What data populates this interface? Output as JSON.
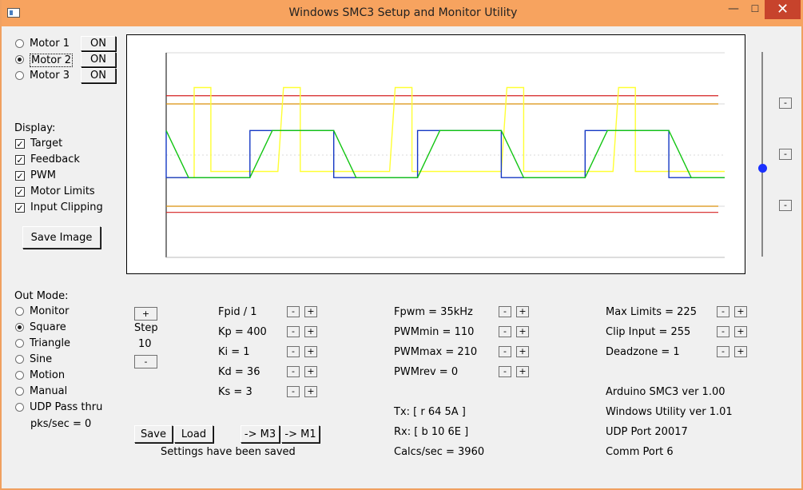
{
  "window": {
    "title": "Windows SMC3 Setup and Monitor Utility",
    "close_glyph": "✕",
    "min_glyph": "—",
    "max_glyph": "☐"
  },
  "motors": [
    {
      "label": "Motor 1",
      "state": "ON",
      "selected": false
    },
    {
      "label": "Motor 2",
      "state": "ON",
      "selected": true
    },
    {
      "label": "Motor 3",
      "state": "ON",
      "selected": false
    }
  ],
  "display": {
    "heading": "Display:",
    "options": [
      {
        "label": "Target",
        "checked": true
      },
      {
        "label": "Feedback",
        "checked": true
      },
      {
        "label": "PWM",
        "checked": true
      },
      {
        "label": "Motor Limits",
        "checked": true
      },
      {
        "label": "Input Clipping",
        "checked": true
      }
    ],
    "save_image": "Save Image"
  },
  "out_mode": {
    "heading": "Out Mode:",
    "options": [
      {
        "label": "Monitor",
        "selected": false
      },
      {
        "label": "Square",
        "selected": true
      },
      {
        "label": "Triangle",
        "selected": false
      },
      {
        "label": "Sine",
        "selected": false
      },
      {
        "label": "Motion",
        "selected": false
      },
      {
        "label": "Manual",
        "selected": false
      },
      {
        "label": "UDP Pass thru",
        "selected": false
      }
    ],
    "pks": "pks/sec = 0"
  },
  "step": {
    "plus": "+",
    "minus": "-",
    "label": "Step",
    "value": "10"
  },
  "pid": [
    {
      "label": "Fpid / 1"
    },
    {
      "label": "Kp = 400"
    },
    {
      "label": "Ki = 1"
    },
    {
      "label": "Kd = 36"
    },
    {
      "label": "Ks = 3"
    }
  ],
  "pwm": [
    {
      "label": "Fpwm = 35kHz"
    },
    {
      "label": "PWMmin = 110"
    },
    {
      "label": "PWMmax = 210"
    },
    {
      "label": "PWMrev = 0"
    }
  ],
  "limits": [
    {
      "label": "Max Limits = 225"
    },
    {
      "label": "Clip Input = 255"
    },
    {
      "label": "Deadzone = 1"
    }
  ],
  "comm": {
    "tx": "Tx: [ r 64 5A ]",
    "rx": "Rx: [ b 10 6E ]",
    "calcs": "Calcs/sec = 3960"
  },
  "info": [
    "Arduino SMC3 ver 1.00",
    "Windows Utility ver 1.01",
    "UDP Port 20017",
    "Comm Port 6"
  ],
  "buttons": {
    "save": "Save",
    "load": "Load",
    "to_m3": "-> M3",
    "to_m1": "-> M1",
    "minus": "-",
    "plus": "+"
  },
  "status": "Settings have been saved",
  "slider": {
    "level_fraction": 0.61,
    "side_minus": "-"
  },
  "chart_data": {
    "type": "line",
    "xlim": [
      0,
      100
    ],
    "ylim": [
      0,
      100
    ],
    "grid": true,
    "limit_lines": {
      "upper_red": 79,
      "upper_orange": 75,
      "lower_orange": 25,
      "lower_red": 22
    },
    "series": [
      {
        "color": "#ffff33",
        "values": [
          [
            0,
            39
          ],
          [
            5,
            39
          ],
          [
            5,
            83
          ],
          [
            6,
            83
          ],
          [
            7,
            83
          ],
          [
            8,
            83
          ],
          [
            8,
            42
          ],
          [
            20,
            42
          ],
          [
            21,
            83
          ],
          [
            22,
            83
          ],
          [
            23,
            83
          ],
          [
            24,
            83
          ],
          [
            24,
            42
          ],
          [
            40,
            42
          ],
          [
            41,
            83
          ],
          [
            42,
            83
          ],
          [
            43,
            83
          ],
          [
            44,
            83
          ],
          [
            44,
            42
          ],
          [
            60,
            42
          ],
          [
            61,
            83
          ],
          [
            62,
            83
          ],
          [
            63,
            83
          ],
          [
            64,
            83
          ],
          [
            64,
            42
          ],
          [
            80,
            42
          ],
          [
            81,
            83
          ],
          [
            82,
            83
          ],
          [
            83,
            83
          ],
          [
            84,
            83
          ],
          [
            84,
            42
          ],
          [
            100,
            42
          ]
        ]
      },
      {
        "color": "#1538c4",
        "values": [
          [
            0,
            62
          ],
          [
            0,
            39
          ],
          [
            15,
            39
          ],
          [
            15,
            62
          ],
          [
            30,
            62
          ],
          [
            30,
            39
          ],
          [
            45,
            39
          ],
          [
            45,
            62
          ],
          [
            60,
            62
          ],
          [
            60,
            39
          ],
          [
            75,
            39
          ],
          [
            75,
            62
          ],
          [
            90,
            62
          ],
          [
            90,
            39
          ],
          [
            100,
            39
          ]
        ]
      },
      {
        "color": "#12c512",
        "values": [
          [
            0,
            62
          ],
          [
            4,
            39
          ],
          [
            15,
            39
          ],
          [
            19,
            62
          ],
          [
            30,
            62
          ],
          [
            34,
            39
          ],
          [
            45,
            39
          ],
          [
            49,
            62
          ],
          [
            60,
            62
          ],
          [
            64,
            39
          ],
          [
            75,
            39
          ],
          [
            79,
            62
          ],
          [
            90,
            62
          ],
          [
            94,
            39
          ],
          [
            100,
            39
          ]
        ]
      }
    ]
  }
}
